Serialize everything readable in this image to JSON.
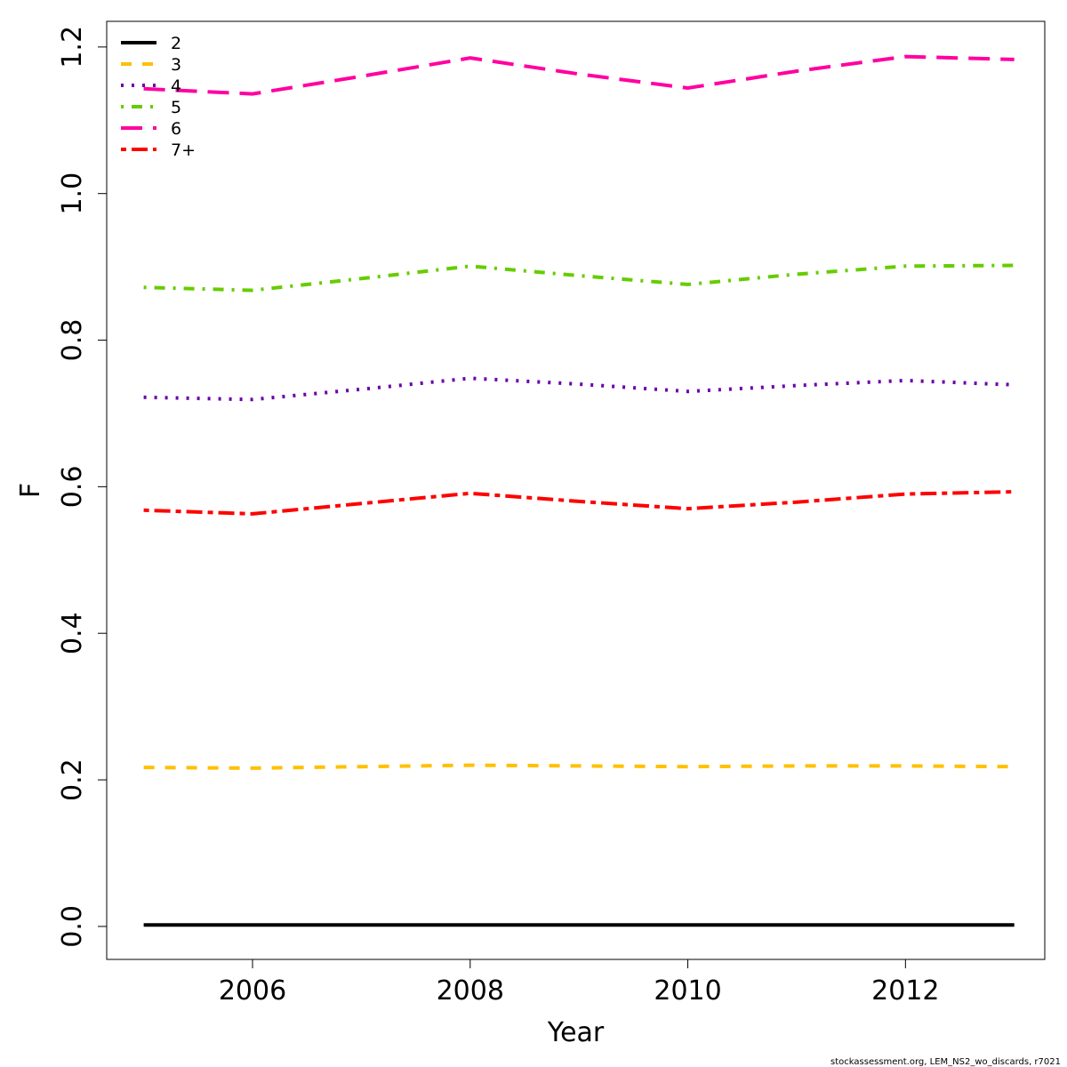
{
  "chart_data": {
    "type": "line",
    "xlabel": "Year",
    "ylabel": "F",
    "xlim": [
      2004.66,
      2013.28
    ],
    "ylim": [
      -0.045,
      1.235
    ],
    "x_ticks": [
      2006,
      2008,
      2010,
      2012
    ],
    "y_ticks": [
      0.0,
      0.2,
      0.4,
      0.6,
      0.8,
      1.0,
      1.2
    ],
    "x_tick_labels": [
      "2006",
      "2008",
      "2010",
      "2012"
    ],
    "y_tick_labels": [
      "0.0",
      "0.2",
      "0.4",
      "0.6",
      "0.8",
      "1.0",
      "1.2"
    ],
    "x": [
      2005,
      2006,
      2007,
      2008,
      2009,
      2010,
      2011,
      2012,
      2013
    ],
    "grid": false,
    "legend_position": "top-left",
    "series": [
      {
        "name": "2",
        "color": "#000000",
        "dash": "solid",
        "values": [
          0.002,
          0.002,
          0.002,
          0.002,
          0.002,
          0.002,
          0.002,
          0.002,
          0.002
        ]
      },
      {
        "name": "3",
        "color": "#FFC000",
        "dash": "dashed",
        "values": [
          0.217,
          0.216,
          0.218,
          0.22,
          0.219,
          0.218,
          0.219,
          0.219,
          0.218
        ]
      },
      {
        "name": "4",
        "color": "#6A00A8",
        "dash": "dotted",
        "values": [
          0.722,
          0.719,
          0.733,
          0.748,
          0.74,
          0.73,
          0.738,
          0.745,
          0.739
        ]
      },
      {
        "name": "5",
        "color": "#66CC00",
        "dash": "dotdash",
        "values": [
          0.872,
          0.868,
          0.884,
          0.901,
          0.888,
          0.876,
          0.89,
          0.901,
          0.902
        ]
      },
      {
        "name": "6",
        "color": "#FF00A0",
        "dash": "longdash",
        "values": [
          1.143,
          1.136,
          1.16,
          1.185,
          1.163,
          1.144,
          1.167,
          1.187,
          1.183
        ]
      },
      {
        "name": "7+",
        "color": "#FF0000",
        "dash": "twodash",
        "values": [
          0.568,
          0.563,
          0.577,
          0.591,
          0.58,
          0.57,
          0.579,
          0.59,
          0.593
        ]
      }
    ]
  },
  "footer": {
    "text": "stockassessment.org, LEM_NS2_wo_discards, r7021"
  }
}
